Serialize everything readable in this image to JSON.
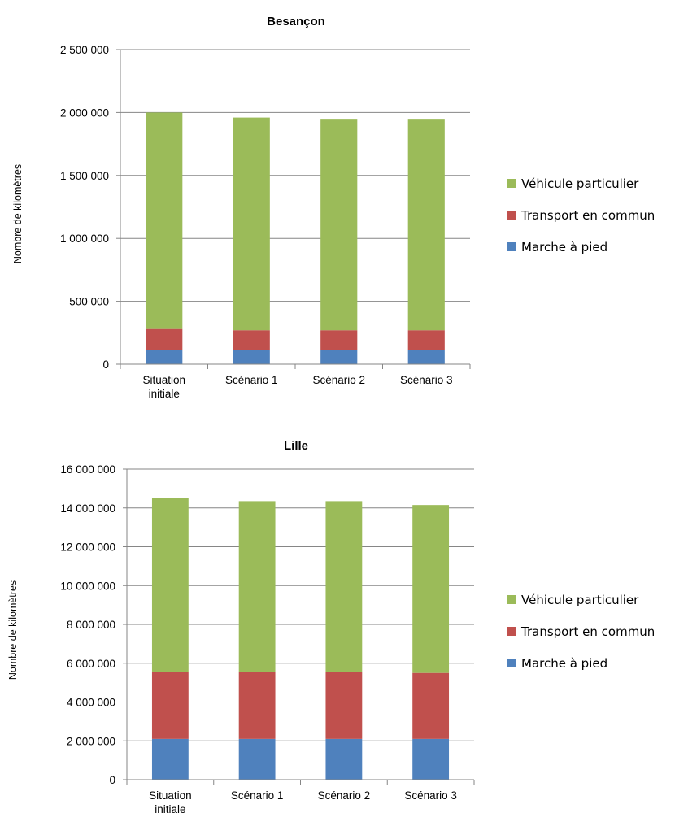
{
  "charts": [
    {
      "id": "besancon",
      "chart_data": {
        "type": "bar",
        "stacked": true,
        "title": "Besançon",
        "xlabel": "",
        "ylabel": "Nombre de kilomètres",
        "categories": [
          [
            "Situation",
            "initiale"
          ],
          [
            "Scénario 1"
          ],
          [
            "Scénario 2"
          ],
          [
            "Scénario 3"
          ]
        ],
        "series": [
          {
            "name": "Marche à pied",
            "color": "#4F81BD",
            "values": [
              110000,
              110000,
              110000,
              110000
            ]
          },
          {
            "name": "Transport en commun",
            "color": "#C0504D",
            "values": [
              170000,
              160000,
              160000,
              160000
            ]
          },
          {
            "name": "Véhicule particulier",
            "color": "#9BBB59",
            "values": [
              1720000,
              1690000,
              1680000,
              1680000
            ]
          }
        ],
        "ylim": [
          0,
          2500000
        ],
        "yticks": [
          0,
          500000,
          1000000,
          1500000,
          2000000,
          2500000
        ],
        "ytick_labels": [
          "0",
          "500 000",
          "1 000 000",
          "1 500 000",
          "2 000 000",
          "2 500 000"
        ],
        "grid": true,
        "legend_position": "right",
        "legend_order": [
          "Véhicule particulier",
          "Transport en commun",
          "Marche à pied"
        ]
      }
    },
    {
      "id": "lille",
      "chart_data": {
        "type": "bar",
        "stacked": true,
        "title": "Lille",
        "xlabel": "",
        "ylabel": "Nombre de kilomètres",
        "categories": [
          [
            "Situation",
            "initiale"
          ],
          [
            "Scénario 1"
          ],
          [
            "Scénario 2"
          ],
          [
            "Scénario 3"
          ]
        ],
        "series": [
          {
            "name": "Marche à pied",
            "color": "#4F81BD",
            "values": [
              2100000,
              2100000,
              2100000,
              2100000
            ]
          },
          {
            "name": "Transport en commun",
            "color": "#C0504D",
            "values": [
              3450000,
              3450000,
              3450000,
              3400000
            ]
          },
          {
            "name": "Véhicule particulier",
            "color": "#9BBB59",
            "values": [
              8950000,
              8800000,
              8800000,
              8650000
            ]
          }
        ],
        "ylim": [
          0,
          16000000
        ],
        "yticks": [
          0,
          2000000,
          4000000,
          6000000,
          8000000,
          10000000,
          12000000,
          14000000,
          16000000
        ],
        "ytick_labels": [
          "0",
          "2 000 000",
          "4 000 000",
          "6 000 000",
          "8 000 000",
          "10 000 000",
          "12 000 000",
          "14 000 000",
          "16 000 000"
        ],
        "grid": true,
        "legend_position": "right",
        "legend_order": [
          "Véhicule particulier",
          "Transport en commun",
          "Marche à pied"
        ]
      }
    }
  ]
}
